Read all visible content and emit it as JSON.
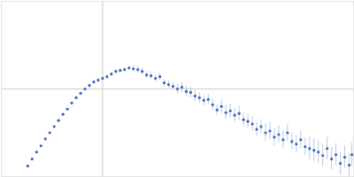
{
  "chart_data": {
    "type": "scatter",
    "color": "#3a66b8",
    "grid": true,
    "tick_labels": false,
    "marker": "circle",
    "xlim": [
      0,
      400
    ],
    "ylim": [
      0,
      200
    ],
    "xticks": [
      115
    ],
    "yticks": [
      100
    ],
    "x": [
      30,
      35,
      40,
      45,
      50,
      55,
      60,
      65,
      70,
      75,
      80,
      85,
      90,
      95,
      100,
      105,
      110,
      115,
      120,
      125,
      130,
      135,
      140,
      145,
      150,
      155,
      160,
      165,
      170,
      175,
      180,
      185,
      190,
      195,
      200,
      205,
      210,
      215,
      220,
      225,
      230,
      235,
      240,
      245,
      250,
      255,
      260,
      265,
      270,
      275,
      280,
      285,
      290,
      295,
      300,
      305,
      310,
      315,
      320,
      325,
      330,
      335,
      340,
      345,
      350,
      355,
      360,
      365,
      370,
      375,
      380,
      385,
      390,
      395,
      398
    ],
    "values": [
      12,
      20,
      28,
      35,
      43,
      50,
      57,
      64,
      71,
      77,
      84,
      90,
      95,
      100,
      104,
      108,
      110,
      112,
      114,
      117,
      120,
      121,
      122,
      124,
      123,
      122,
      120,
      116,
      115,
      112,
      114,
      107,
      105,
      103,
      100,
      102,
      97,
      96,
      92,
      90,
      87,
      88,
      82,
      76,
      80,
      73,
      75,
      70,
      72,
      65,
      63,
      60,
      54,
      57,
      50,
      52,
      45,
      48,
      42,
      50,
      40,
      37,
      42,
      34,
      32,
      30,
      28,
      24,
      32,
      20,
      25,
      15,
      22,
      13,
      25
    ],
    "errors": [
      1,
      1,
      1,
      1,
      1,
      1,
      1,
      1,
      1,
      1,
      1,
      1,
      1,
      1,
      2,
      2,
      2,
      2,
      2,
      2,
      2,
      2,
      2,
      2,
      4,
      4,
      4,
      4,
      4,
      4,
      4,
      4,
      4,
      4,
      6,
      6,
      6,
      6,
      6,
      6,
      6,
      6,
      6,
      6,
      8,
      8,
      8,
      8,
      8,
      8,
      8,
      8,
      8,
      8,
      10,
      10,
      10,
      10,
      10,
      10,
      10,
      10,
      10,
      10,
      13,
      13,
      13,
      13,
      13,
      13,
      13,
      13,
      13,
      13,
      13
    ]
  }
}
